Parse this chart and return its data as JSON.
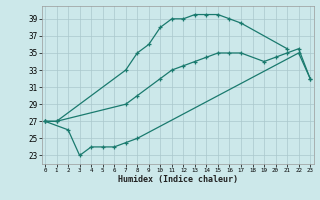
{
  "bg_color": "#cce8ea",
  "grid_color": "#aac8cc",
  "line_color": "#1a7a6e",
  "xlabel": "Humidex (Indice chaleur)",
  "xlim": [
    -0.3,
    23.3
  ],
  "ylim": [
    22.0,
    40.5
  ],
  "yticks": [
    23,
    25,
    27,
    29,
    31,
    33,
    35,
    37,
    39
  ],
  "xticks": [
    0,
    1,
    2,
    3,
    4,
    5,
    6,
    7,
    8,
    9,
    10,
    11,
    12,
    13,
    14,
    15,
    16,
    17,
    18,
    19,
    20,
    21,
    22,
    23
  ],
  "line1_x": [
    0,
    1,
    7,
    8,
    9,
    10,
    11,
    12,
    13,
    14,
    15,
    16,
    17,
    21
  ],
  "line1_y": [
    27,
    27,
    33,
    35,
    36,
    38,
    39,
    39,
    39.5,
    39.5,
    39.5,
    39,
    38.5,
    35.5
  ],
  "line2_x": [
    0,
    1,
    7,
    8,
    10,
    11,
    12,
    13,
    14,
    15,
    16,
    17,
    19,
    20,
    21,
    22,
    23
  ],
  "line2_y": [
    27,
    27,
    29,
    30,
    32,
    33,
    33.5,
    34,
    34.5,
    35,
    35,
    35,
    34,
    34.5,
    35,
    35.5,
    32
  ],
  "line3_x": [
    0,
    2,
    3,
    4,
    5,
    6,
    7,
    8,
    22,
    23
  ],
  "line3_y": [
    27,
    26,
    23,
    24,
    24,
    24,
    24.5,
    25,
    35,
    32
  ],
  "ytick_fontsize": 5.5,
  "xtick_fontsize": 4.2,
  "xlabel_fontsize": 6.0
}
